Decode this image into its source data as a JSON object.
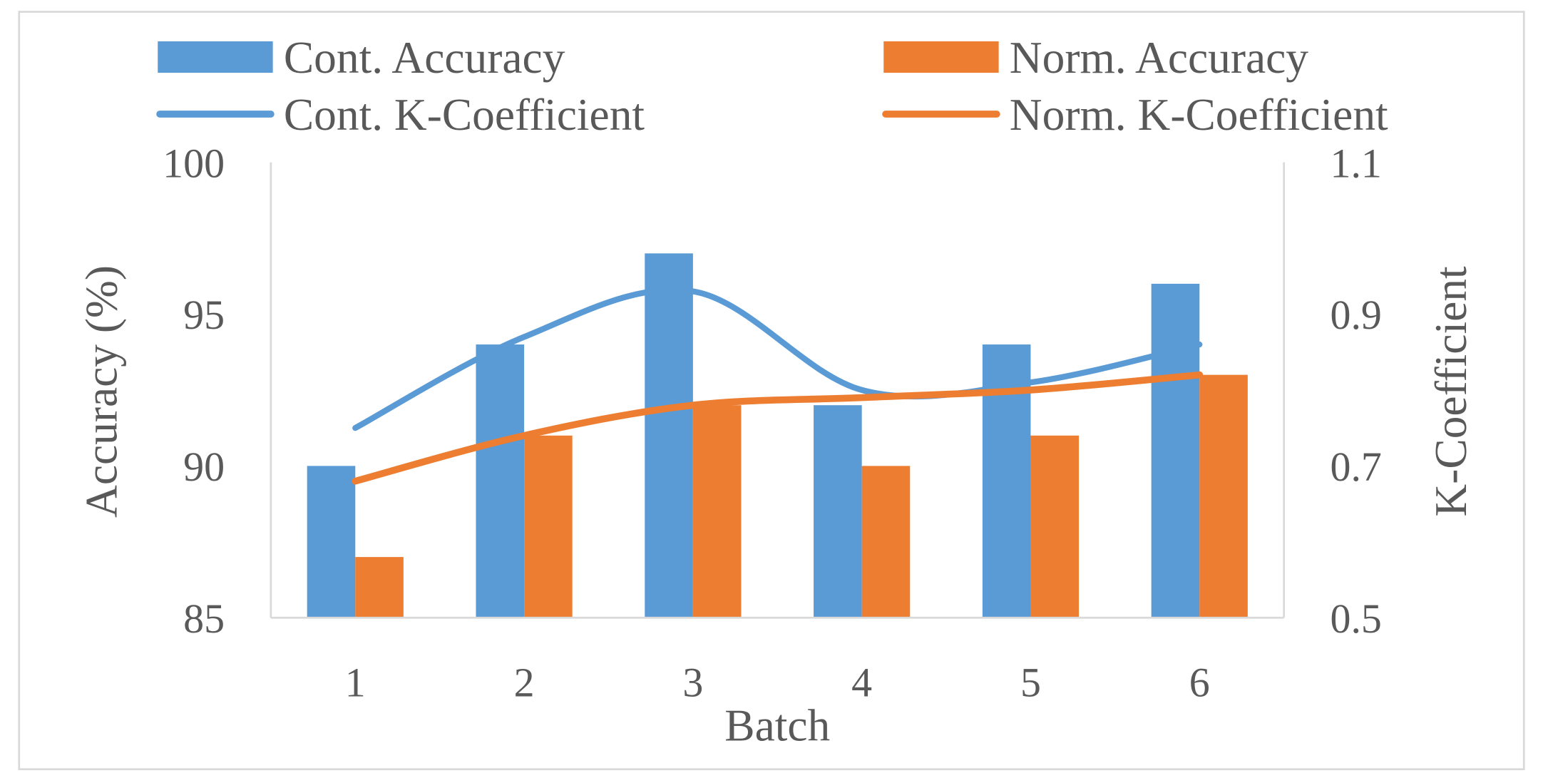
{
  "chart_data": {
    "type": "bar",
    "combo": "bar + smoothed line, dual y-axis",
    "title": "",
    "xlabel": "Batch",
    "ylabel": "Accuracy (%)",
    "y2label": "K-Coefficient",
    "categories": [
      "1",
      "2",
      "3",
      "4",
      "5",
      "6"
    ],
    "ylim": [
      85,
      100
    ],
    "yticks": [
      "85",
      "90",
      "95",
      "100"
    ],
    "y2lim": [
      0.5,
      1.1
    ],
    "y2ticks": [
      "0.5",
      "0.7",
      "0.9",
      "1.1"
    ],
    "grid": false,
    "legend_position": "top",
    "series": [
      {
        "name": "Cont. Accuracy",
        "kind": "bar",
        "axis": "left",
        "color": "#5B9BD5",
        "values": [
          90,
          94,
          97,
          92,
          94,
          96
        ]
      },
      {
        "name": "Norm. Accuracy",
        "kind": "bar",
        "axis": "left",
        "color": "#ED7D31",
        "values": [
          87,
          91,
          92,
          90,
          91,
          93
        ]
      },
      {
        "name": "Cont. K-Coefficient",
        "kind": "line",
        "axis": "right",
        "color": "#5B9BD5",
        "values": [
          0.75,
          0.87,
          0.93,
          0.8,
          0.81,
          0.86
        ]
      },
      {
        "name": "Norm. K-Coefficient",
        "kind": "line",
        "axis": "right",
        "color": "#ED7D31",
        "values": [
          0.68,
          0.74,
          0.78,
          0.79,
          0.8,
          0.82
        ]
      }
    ]
  }
}
